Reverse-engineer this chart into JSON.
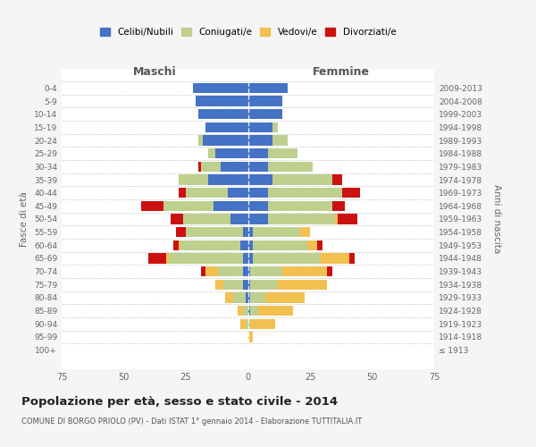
{
  "age_groups": [
    "100+",
    "95-99",
    "90-94",
    "85-89",
    "80-84",
    "75-79",
    "70-74",
    "65-69",
    "60-64",
    "55-59",
    "50-54",
    "45-49",
    "40-44",
    "35-39",
    "30-34",
    "25-29",
    "20-24",
    "15-19",
    "10-14",
    "5-9",
    "0-4"
  ],
  "birth_years": [
    "≤ 1913",
    "1914-1918",
    "1919-1923",
    "1924-1928",
    "1929-1933",
    "1934-1938",
    "1939-1943",
    "1944-1948",
    "1949-1953",
    "1954-1958",
    "1959-1963",
    "1964-1968",
    "1969-1973",
    "1974-1978",
    "1979-1983",
    "1984-1988",
    "1989-1993",
    "1994-1998",
    "1999-2003",
    "2004-2008",
    "2009-2013"
  ],
  "maschi": {
    "celibi": [
      0,
      0,
      0,
      0,
      1,
      2,
      2,
      2,
      3,
      2,
      7,
      14,
      8,
      16,
      11,
      13,
      18,
      17,
      20,
      21,
      22
    ],
    "coniugati": [
      0,
      0,
      1,
      2,
      5,
      8,
      10,
      30,
      24,
      23,
      19,
      20,
      17,
      12,
      8,
      3,
      2,
      0,
      0,
      0,
      0
    ],
    "vedovi": [
      0,
      0,
      2,
      2,
      3,
      3,
      5,
      1,
      1,
      0,
      0,
      0,
      0,
      0,
      0,
      0,
      0,
      0,
      0,
      0,
      0
    ],
    "divorziati": [
      0,
      0,
      0,
      0,
      0,
      0,
      2,
      7,
      2,
      4,
      5,
      9,
      3,
      0,
      1,
      0,
      0,
      0,
      0,
      0,
      0
    ]
  },
  "femmine": {
    "nubili": [
      0,
      0,
      0,
      1,
      1,
      1,
      1,
      2,
      2,
      2,
      8,
      8,
      8,
      10,
      8,
      8,
      10,
      10,
      14,
      14,
      16
    ],
    "coniugate": [
      0,
      0,
      1,
      3,
      6,
      11,
      13,
      27,
      22,
      19,
      27,
      26,
      30,
      24,
      18,
      12,
      6,
      2,
      0,
      0,
      0
    ],
    "vedove": [
      0,
      2,
      10,
      14,
      16,
      20,
      18,
      12,
      4,
      4,
      1,
      0,
      0,
      0,
      0,
      0,
      0,
      0,
      0,
      0,
      0
    ],
    "divorziate": [
      0,
      0,
      0,
      0,
      0,
      0,
      2,
      2,
      2,
      0,
      8,
      5,
      7,
      4,
      0,
      0,
      0,
      0,
      0,
      0,
      0
    ]
  },
  "colors": {
    "celibi": "#4472C4",
    "coniugati": "#BFCF8E",
    "vedovi": "#F2C050",
    "divorziati": "#CC1111"
  },
  "legend_labels": [
    "Celibi/Nubili",
    "Coniugati/e",
    "Vedovi/e",
    "Divorziati/e"
  ],
  "title": "Popolazione per età, sesso e stato civile - 2014",
  "subtitle": "COMUNE DI BORGO PRIOLO (PV) - Dati ISTAT 1° gennaio 2014 - Elaborazione TUTTITALIA.IT",
  "label_maschi": "Maschi",
  "label_femmine": "Femmine",
  "ylabel_left": "Fasce di età",
  "ylabel_right": "Anni di nascita",
  "xlim": 75,
  "bg_color": "#f5f5f5",
  "plot_bg": "#ffffff",
  "grid_color": "#cccccc"
}
